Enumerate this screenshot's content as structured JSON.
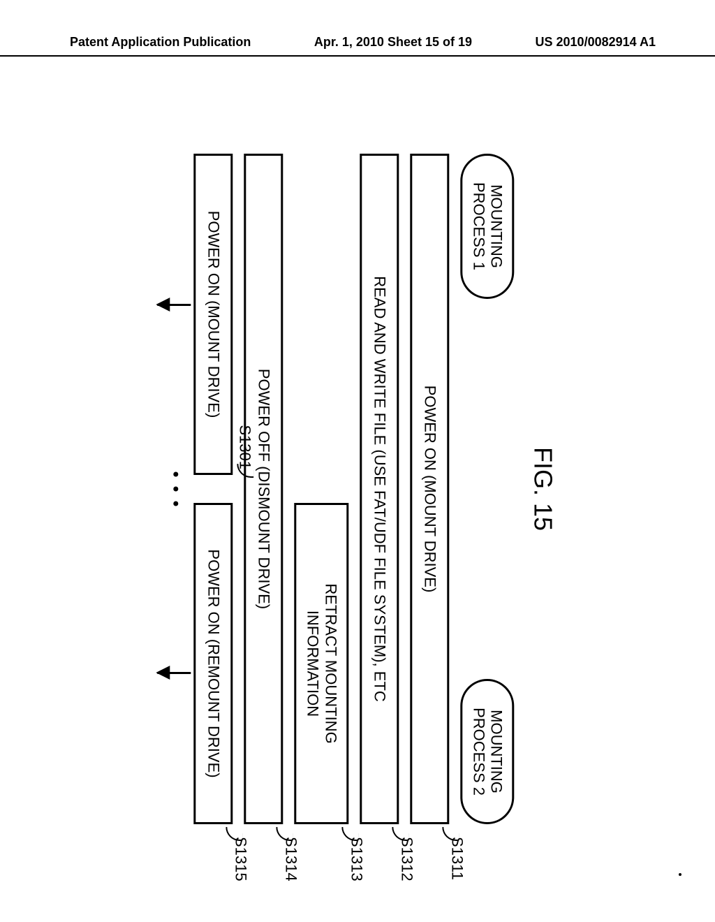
{
  "header": {
    "left": "Patent Application Publication",
    "mid": "Apr. 1, 2010  Sheet 15 of 19",
    "right": "US 2010/0082914 A1"
  },
  "figure": {
    "title": "FIG. 15",
    "process1": {
      "line1": "MOUNTING",
      "line2": "PROCESS 1"
    },
    "process2": {
      "line1": "MOUNTING",
      "line2": "PROCESS 2"
    },
    "steps": {
      "s1311": {
        "label": "POWER ON (MOUNT DRIVE)",
        "tag": "S1311"
      },
      "s1312": {
        "label": "READ AND WRITE FILE (USE FAT/UDF FILE SYSTEM), ETC",
        "tag": "S1312"
      },
      "s1313": {
        "line1": "RETRACT MOUNTING",
        "line2": "INFORMATION",
        "tag": "S1313"
      },
      "s1314": {
        "label": "POWER OFF (DISMOUNT DRIVE)",
        "tag": "S1314"
      },
      "s1301": {
        "label": "POWER ON (MOUNT DRIVE)",
        "tag": "S1301"
      },
      "s1315": {
        "label": "POWER ON (REMOUNT DRIVE)",
        "tag": "S1315"
      }
    }
  },
  "colors": {
    "line": "#000000",
    "bg": "#ffffff"
  }
}
